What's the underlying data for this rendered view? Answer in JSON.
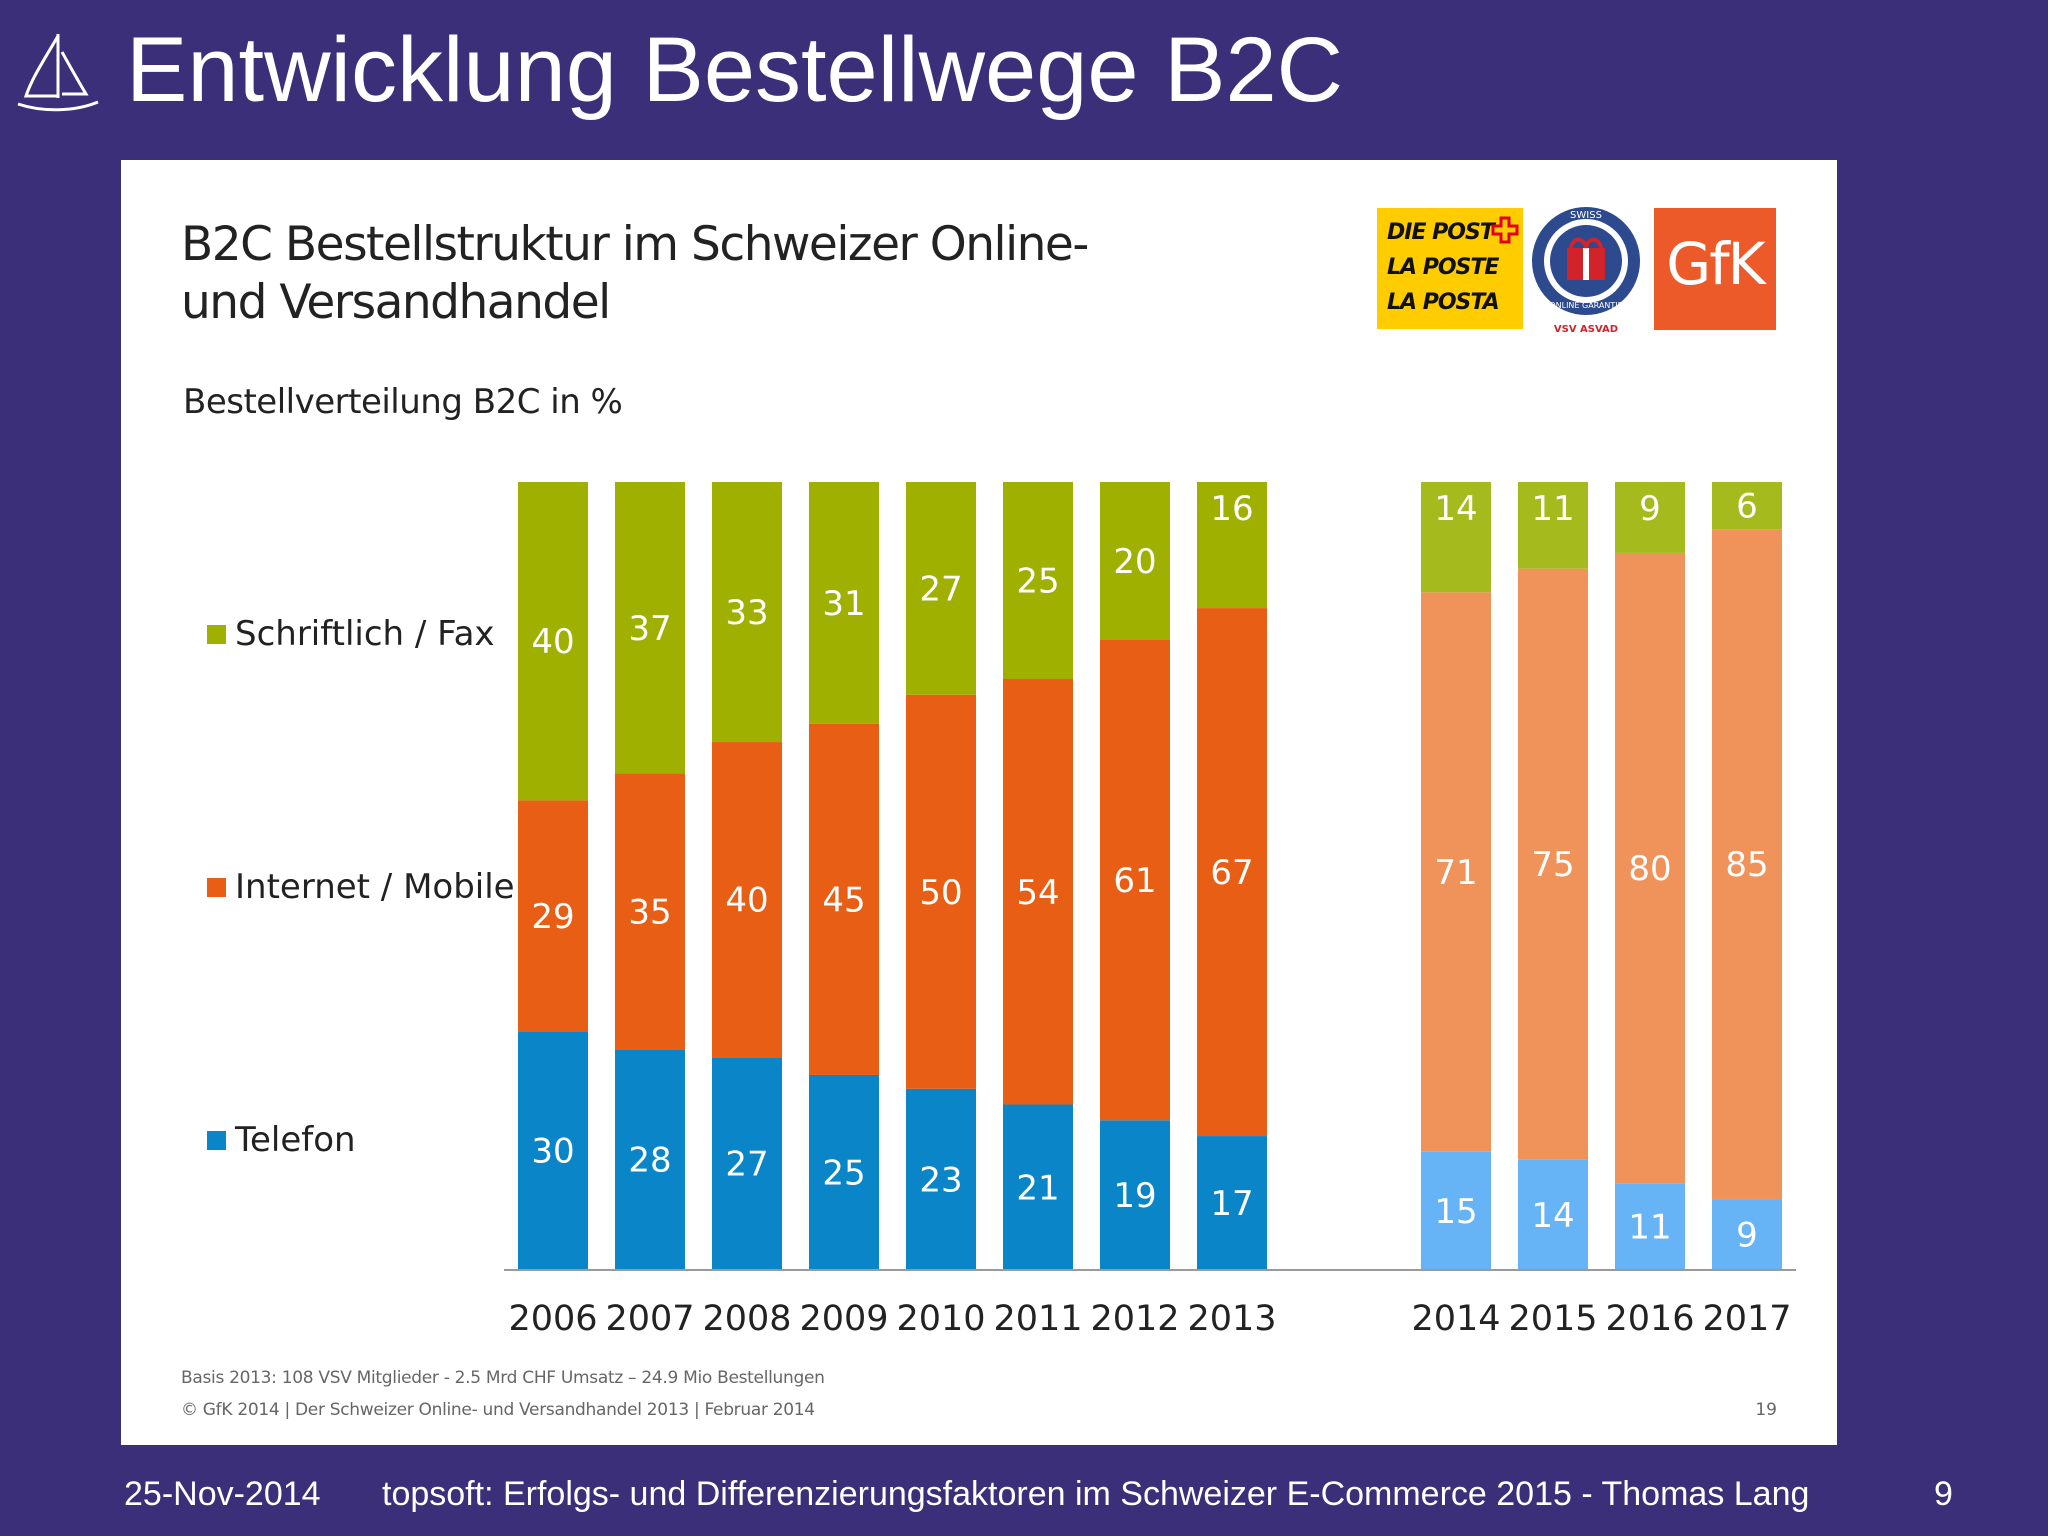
{
  "slide": {
    "title": "Entwicklung Bestellwege B2C"
  },
  "chart_title": {
    "line1": "B2C Bestellstruktur im Schweizer Online-",
    "line2": "und Versandhandel"
  },
  "chart_subtitle": "Bestellverteilung B2C in %",
  "logos": {
    "post_lines": [
      "DIE POST",
      "LA POSTE",
      "LA POSTA"
    ],
    "vsv_top": "SWISS",
    "vsv_ring": "ONLINE GARANTIE",
    "vsv_bottom": "VSV ASVAD",
    "gfk": "GfK"
  },
  "chart_data": {
    "type": "bar",
    "stacked": true,
    "categories": [
      "2006",
      "2007",
      "2008",
      "2009",
      "2010",
      "2011",
      "2012",
      "2013",
      "2014",
      "2015",
      "2016",
      "2017"
    ],
    "forecast_from": "2014",
    "series": [
      {
        "name": "Telefon",
        "values": [
          30,
          28,
          27,
          25,
          23,
          21,
          19,
          17,
          15,
          14,
          11,
          9
        ],
        "color": "#0a86c8",
        "forecast_color": "#66b3f5"
      },
      {
        "name": "Internet / Mobile",
        "values": [
          29,
          35,
          40,
          45,
          50,
          54,
          61,
          67,
          71,
          75,
          80,
          85
        ],
        "color": "#e85e14",
        "forecast_color": "#f0935a"
      },
      {
        "name": "Schriftlich / Fax",
        "values": [
          40,
          37,
          33,
          31,
          27,
          25,
          20,
          16,
          14,
          11,
          9,
          6
        ],
        "color": "#9fb000",
        "forecast_color": "#a5ba1c"
      }
    ],
    "legend_position": "left",
    "grid": false
  },
  "notes": {
    "basis": "Basis 2013: 108  VSV Mitglieder  - 2.5 Mrd CHF  Umsatz – 24.9  Mio Bestellungen",
    "source": "© GfK 2014 | Der Schweizer Online- und Versandhandel 2013 | Februar 2014",
    "source_page": "19"
  },
  "footer": {
    "date": "25-Nov-2014",
    "text": "topsoft: Erfolgs- und Differenzierungsfaktoren im Schweizer E-Commerce 2015 - Thomas Lang",
    "page": "9"
  }
}
